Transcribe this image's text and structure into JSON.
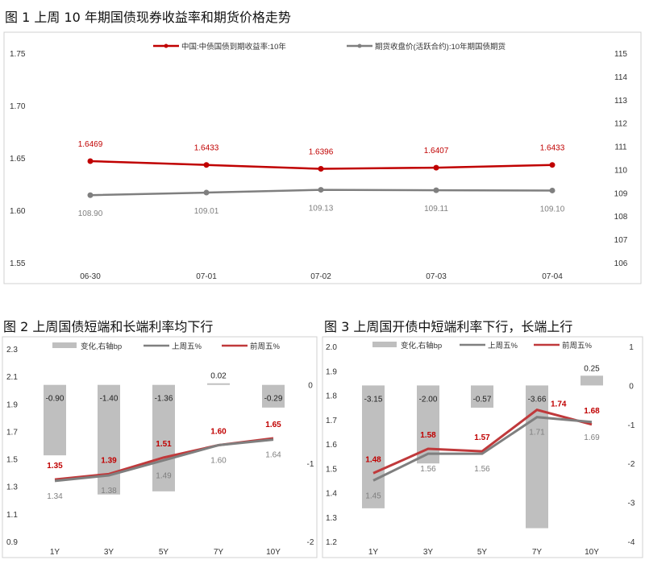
{
  "chart_data": [
    {
      "type": "line",
      "title": "图 1  上周 10 年期国债现券收益率和期货价格走势",
      "categories": [
        "06-30",
        "07-01",
        "07-02",
        "07-03",
        "07-04"
      ],
      "series": [
        {
          "name": "中国:中债国债到期收益率:10年",
          "axis": "left",
          "color": "#c00000",
          "values": [
            1.6469,
            1.6433,
            1.6396,
            1.6407,
            1.6433
          ],
          "labels": [
            "1.6469",
            "1.6433",
            "1.6396",
            "1.6407",
            "1.6433"
          ]
        },
        {
          "name": "期货收盘价(活跃合约):10年期国债期货",
          "axis": "right",
          "color": "#7f7f7f",
          "values": [
            108.9,
            109.01,
            109.13,
            109.11,
            109.1
          ],
          "labels": [
            "108.90",
            "109.01",
            "109.13",
            "109.11",
            "109.10"
          ]
        }
      ],
      "ylim": [
        1.55,
        1.75
      ],
      "yticks": [
        "1.55",
        "1.60",
        "1.65",
        "1.70",
        "1.75"
      ],
      "y2lim": [
        106,
        115
      ],
      "y2ticks": [
        "106",
        "107",
        "108",
        "109",
        "110",
        "111",
        "112",
        "113",
        "114",
        "115"
      ],
      "legend": "top"
    },
    {
      "type": "bar+line",
      "title": "图 2  上周国债短端和长端利率均下行",
      "categories": [
        "1Y",
        "3Y",
        "5Y",
        "7Y",
        "10Y"
      ],
      "bars": {
        "name": "变化,右轴bp",
        "color": "#bfbfbf",
        "values": [
          -0.9,
          -1.4,
          -1.36,
          0.02,
          -0.29
        ],
        "labels": [
          "-0.90",
          "-1.40",
          "-1.36",
          "0.02",
          "-0.29"
        ]
      },
      "series": [
        {
          "name": "上周五%",
          "color": "#7f7f7f",
          "values": [
            1.34,
            1.38,
            1.49,
            1.6,
            1.64
          ],
          "labels": [
            "1.34",
            "1.38",
            "1.49",
            "1.60",
            "1.64"
          ]
        },
        {
          "name": "前周五%",
          "color": "#c0393b",
          "values": [
            1.35,
            1.39,
            1.51,
            1.6,
            1.65
          ],
          "labels": [
            "1.35",
            "1.39",
            "1.51",
            "1.60",
            "1.65"
          ]
        }
      ],
      "ylim": [
        0.9,
        2.3
      ],
      "yticks": [
        "0.9",
        "1.1",
        "1.3",
        "1.5",
        "1.7",
        "1.9",
        "2.1",
        "2.3"
      ],
      "y2lim": [
        -2,
        0.46
      ],
      "y2ticks": [
        "-2",
        "-1",
        "0"
      ],
      "legend": "top"
    },
    {
      "type": "bar+line",
      "title": "图 3  上周国开债中短端利率下行，长端上行",
      "categories": [
        "1Y",
        "3Y",
        "5Y",
        "7Y",
        "10Y"
      ],
      "bars": {
        "name": "变化,右轴bp",
        "color": "#bfbfbf",
        "values": [
          -3.15,
          -2.0,
          -0.57,
          -3.66,
          0.25
        ],
        "labels": [
          "-3.15",
          "-2.00",
          "-0.57",
          "-3.66",
          "0.25"
        ]
      },
      "series": [
        {
          "name": "上周五%",
          "color": "#7f7f7f",
          "values": [
            1.45,
            1.56,
            1.56,
            1.71,
            1.69
          ],
          "labels": [
            "1.45",
            "1.56",
            "1.56",
            "1.71",
            "1.69"
          ]
        },
        {
          "name": "前周五%",
          "color": "#c0393b",
          "values": [
            1.48,
            1.58,
            1.57,
            1.74,
            1.68
          ],
          "labels": [
            "1.48",
            "1.58",
            "1.57",
            "1.74",
            "1.68"
          ]
        }
      ],
      "ylim": [
        1.2,
        2.0
      ],
      "yticks": [
        "1.2",
        "1.3",
        "1.4",
        "1.5",
        "1.6",
        "1.7",
        "1.8",
        "1.9",
        "2.0"
      ],
      "y2lim": [
        -4,
        1
      ],
      "y2ticks": [
        "-4",
        "-3",
        "-2",
        "-1",
        "0",
        "1"
      ],
      "legend": "top"
    }
  ]
}
